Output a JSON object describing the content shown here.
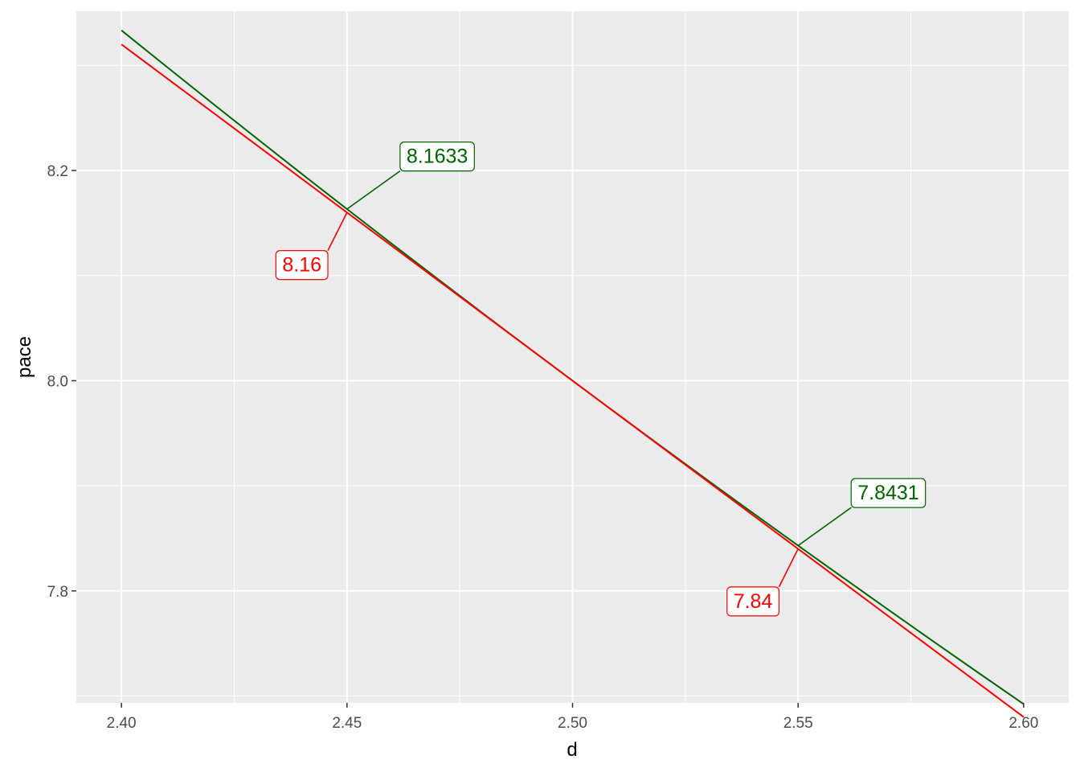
{
  "chart_data": {
    "type": "line",
    "title": "",
    "xlabel": "d",
    "ylabel": "pace",
    "xlim": [
      2.39,
      2.61
    ],
    "ylim": [
      7.6935,
      8.3515
    ],
    "x_ticks": [
      {
        "value": 2.4,
        "label": "2.40"
      },
      {
        "value": 2.45,
        "label": "2.45"
      },
      {
        "value": 2.5,
        "label": "2.50"
      },
      {
        "value": 2.55,
        "label": "2.55"
      },
      {
        "value": 2.6,
        "label": "2.60"
      }
    ],
    "y_ticks": [
      {
        "value": 7.8,
        "label": "7.8"
      },
      {
        "value": 8.0,
        "label": "8.0"
      },
      {
        "value": 8.2,
        "label": "8.2"
      }
    ],
    "x_minor": [
      2.425,
      2.475,
      2.525,
      2.575
    ],
    "y_minor": [
      7.7,
      7.9,
      8.1,
      8.3
    ],
    "grid": true,
    "legend": "none",
    "series": [
      {
        "color": "#006400",
        "x": [
          2.4,
          2.41,
          2.42,
          2.43,
          2.44,
          2.45,
          2.46,
          2.47,
          2.48,
          2.49,
          2.5,
          2.51,
          2.52,
          2.53,
          2.54,
          2.55,
          2.56,
          2.57,
          2.58,
          2.59,
          2.6
        ],
        "y": [
          8.3333,
          8.2988,
          8.2645,
          8.2305,
          8.1967,
          8.1633,
          8.1301,
          8.0972,
          8.0645,
          8.0321,
          8.0,
          7.9681,
          7.9365,
          7.9051,
          7.874,
          7.8431,
          7.8125,
          7.7821,
          7.7519,
          7.722,
          7.6923
        ]
      },
      {
        "color": "#ff0000",
        "x": [
          2.4,
          2.6
        ],
        "y": [
          8.32,
          7.68
        ]
      }
    ],
    "annotations": [
      {
        "x": 2.45,
        "y": 8.1633,
        "text": "8.1633",
        "color": "#006400",
        "dx": 0.02,
        "dy": 0.05
      },
      {
        "x": 2.45,
        "y": 8.16,
        "text": "8.16",
        "color": "#ff0000",
        "dx": -0.01,
        "dy": -0.05
      },
      {
        "x": 2.55,
        "y": 7.8431,
        "text": "7.8431",
        "color": "#006400",
        "dx": 0.02,
        "dy": 0.05
      },
      {
        "x": 2.55,
        "y": 7.84,
        "text": "7.84",
        "color": "#ff0000",
        "dx": -0.01,
        "dy": -0.05
      }
    ]
  }
}
